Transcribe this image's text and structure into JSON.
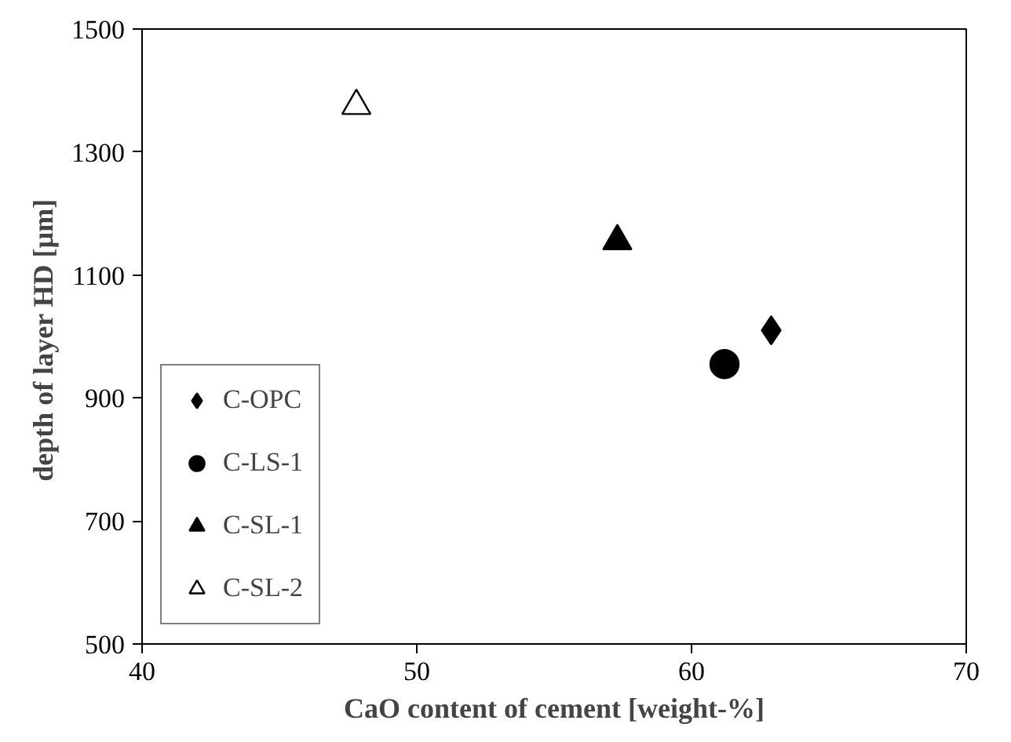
{
  "chart_data": {
    "type": "scatter",
    "xlabel": "CaO content of cement [weight-%]",
    "ylabel": "depth of  layer HD [µm]",
    "xlim": [
      40,
      70
    ],
    "xticks": [
      40,
      50,
      60,
      70
    ],
    "ylim": [
      500,
      1500
    ],
    "yticks": [
      500,
      700,
      900,
      1100,
      1300,
      1500
    ],
    "grid": false,
    "legend": "bottom left",
    "series": [
      {
        "name": "C-OPC",
        "color": "#000000",
        "marker": "diamond",
        "x": [
          62.9
        ],
        "values": [
          1010
        ]
      },
      {
        "name": "C-LS-1",
        "color": "#000000",
        "marker": "circle",
        "x": [
          61.2
        ],
        "values": [
          955
        ]
      },
      {
        "name": "C-SL-1",
        "color": "#000000",
        "marker": "triangle",
        "x": [
          57.3
        ],
        "values": [
          1155
        ]
      },
      {
        "name": "C-SL-2",
        "color": "#ffffff",
        "marker": "triangle",
        "x": [
          47.8
        ],
        "values": [
          1375
        ]
      }
    ]
  }
}
